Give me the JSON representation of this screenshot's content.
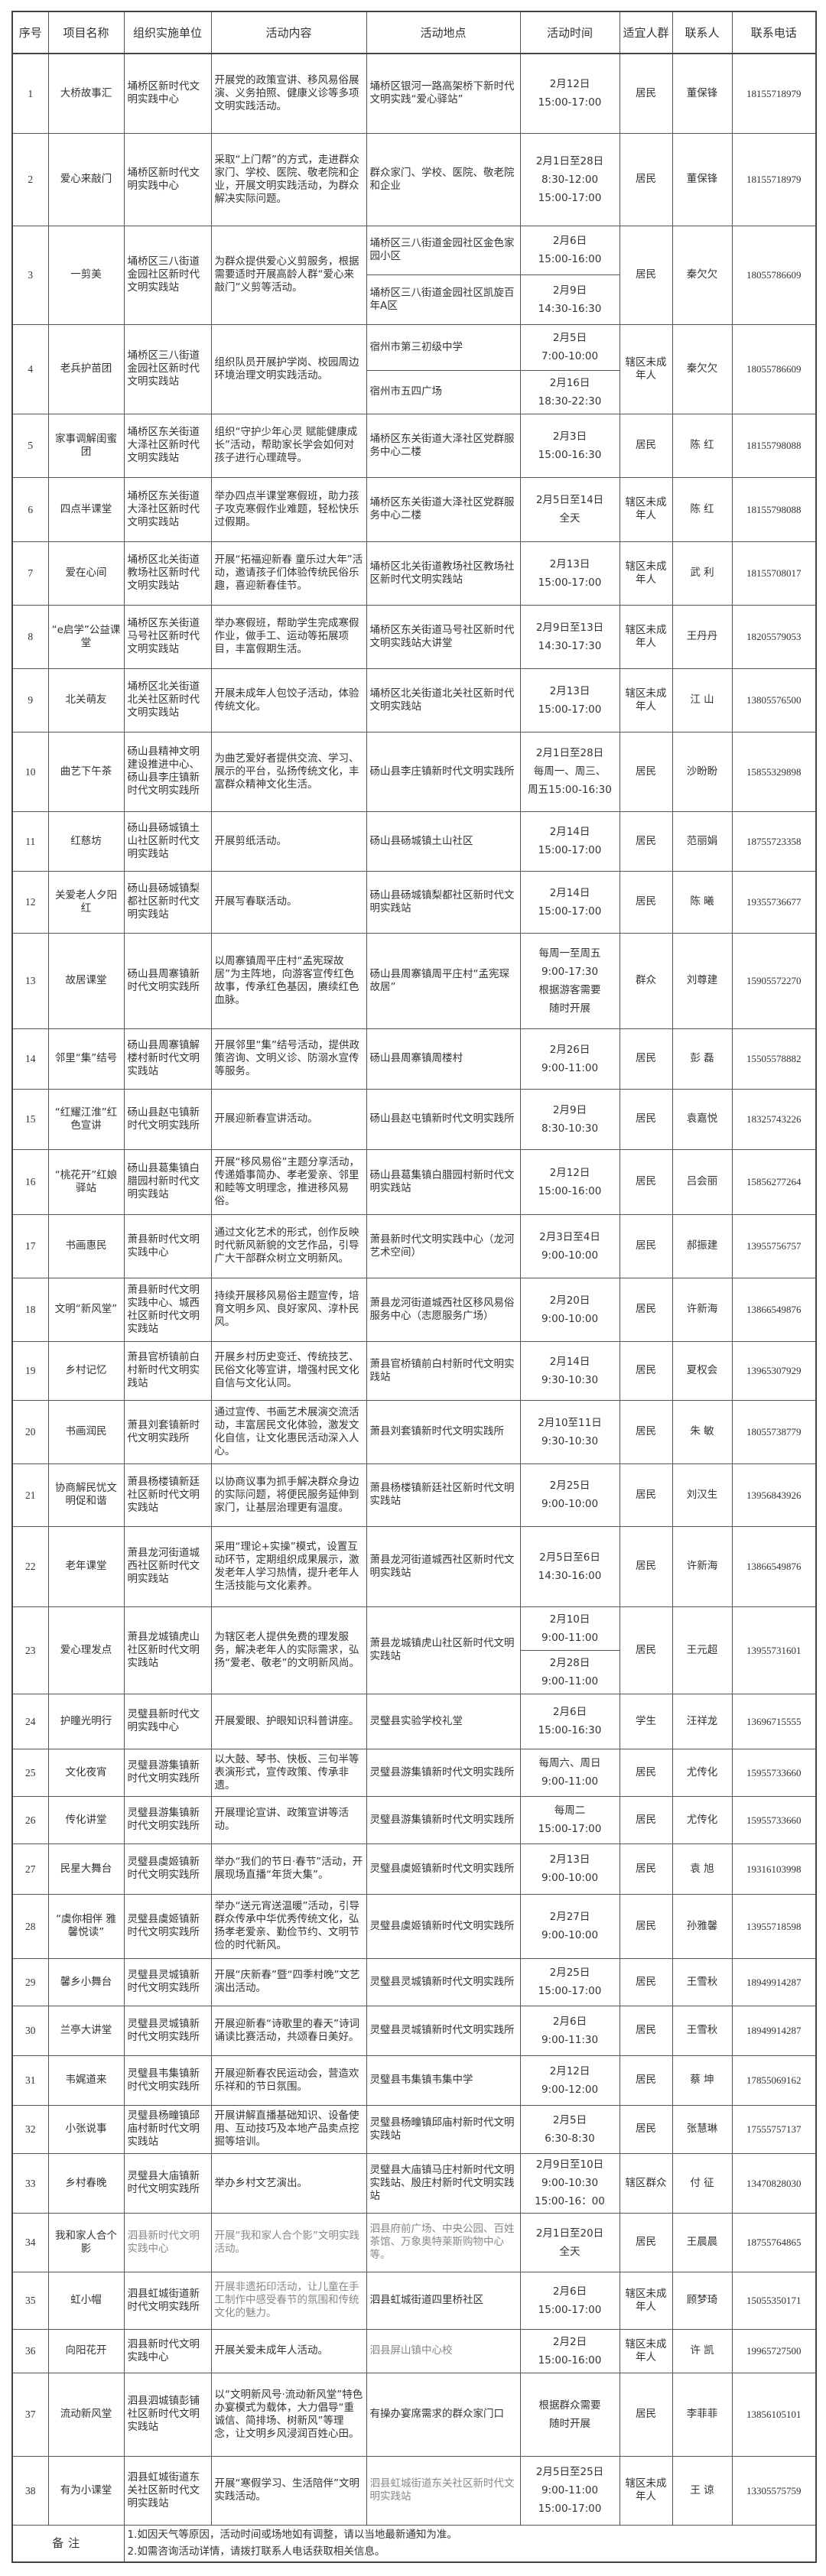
{
  "header": [
    "序号",
    "项目名称",
    "组织实施单位",
    "活动内容",
    "活动地点",
    "活动时间",
    "适宜人群",
    "联系人",
    "联系电话"
  ],
  "rows": [
    {
      "no": "1",
      "name": "大桥故事汇",
      "org": "埇桥区新时代文明实践中心",
      "content": "开展党的政策宣讲、移风易俗展演、义务拍照、健康义诊等多项文明实践活动。",
      "location": "埇桥区银河一路高架桥下新时代文明实践“爱心驿站”",
      "time": "2月12日\n15:00-17:00",
      "audience": "居民",
      "contact": "董保锋",
      "phone": "18155718979"
    },
    {
      "no": "2",
      "name": "爱心来敲门",
      "org": "埇桥区新时代文明实践中心",
      "content": "采取“上门帮”的方式，走进群众家门、学校、医院、敬老院和企业，开展文明实践活动，为群众解决实际问题。",
      "location": "群众家门、学校、医院、敬老院和企业",
      "time": "2月1日至28日\n8:30-12:00\n15:00-17:00",
      "audience": "居民",
      "contact": "董保锋",
      "phone": "18155718979"
    },
    {
      "no": "3",
      "name": "一剪美",
      "org": "埇桥区三八街道金园社区新时代文明实践站",
      "content": "为群众提供爱心义剪服务，根据需要适时开展高龄人群“爱心来敲门”义剪等活动。",
      "location": [
        "埇桥区三八街道金园社区金色家园小区",
        "埇桥区三八街道金园社区凯旋百年A区"
      ],
      "time": [
        "2月6日\n15:00-16:00",
        "2月9日\n14:30-16:30"
      ],
      "audience": "居民",
      "contact": "秦欠欠",
      "phone": "18055786609"
    },
    {
      "no": "4",
      "name": "老兵护苗团",
      "org": "埇桥区三八街道金园社区新时代文明实践站",
      "content": "组织队员开展护学岗、校园周边环境治理文明实践活动。",
      "location": [
        "宿州市第三初级中学",
        "宿州市五四广场"
      ],
      "time": [
        "2月5日\n7:00-10:00",
        "2月16日\n18:30-22:30"
      ],
      "audience": "辖区未成年人",
      "contact": "秦欠欠",
      "phone": "18055786609"
    },
    {
      "no": "5",
      "name": "家事调解闺蜜团",
      "org": "埇桥区东关街道大泽社区新时代文明实践站",
      "content": "组织“守护少年心灵 赋能健康成长”活动，帮助家长学会如何对孩子进行心理疏导。",
      "location": "埇桥区东关街道大泽社区党群服务中心二楼",
      "time": "2月3日\n15:00-16:30",
      "audience": "居民",
      "contact": "陈 红",
      "phone": "18155798088"
    },
    {
      "no": "6",
      "name": "四点半课堂",
      "org": "埇桥区东关街道大泽社区新时代文明实践站",
      "content": "举办四点半课堂寒假班，助力孩子攻克寒假作业难题，轻松快乐过假期。",
      "location": "埇桥区东关街道大泽社区党群服务中心二楼",
      "time": "2月5日至14日\n全天",
      "audience": "辖区未成年人",
      "contact": "陈 红",
      "phone": "18155798088"
    },
    {
      "no": "7",
      "name": "爱在心间",
      "org": "埇桥区北关街道教场社区新时代文明实践站",
      "content": "开展“拓福迎新春 童乐过大年”活动，邀请孩子们体验传统民俗乐趣，喜迎新春佳节。",
      "location": "埇桥区北关街道教场社区教场社区新时代文明实践站",
      "time": "2月13日\n15:00-17:00",
      "audience": "辖区未成年人",
      "contact": "武 利",
      "phone": "18155708017"
    },
    {
      "no": "8",
      "name": "“e启学”公益课堂",
      "org": "埇桥区东关街道马号社区新时代文明实践站",
      "content": "举办寒假班，帮助学生完成寒假作业，做手工、运动等拓展项目，丰富假期生活。",
      "location": "埇桥区东关街道马号社区新时代文明实践站大讲堂",
      "time": "2月9日至13日\n14:30-17:30",
      "audience": "辖区未成年人",
      "contact": "王丹丹",
      "phone": "18205579053"
    },
    {
      "no": "9",
      "name": "北关萌友",
      "org": "埇桥区北关街道北关社区新时代文明实践站",
      "content": "开展未成年人包饺子活动，体验传统文化。",
      "location": "埇桥区北关街道北关社区新时代文明实践站",
      "time": "2月13日\n15:00-17:00",
      "audience": "辖区未成年人",
      "contact": "江 山",
      "phone": "13805576500"
    },
    {
      "no": "10",
      "name": "曲艺下午茶",
      "org": "砀山县精神文明建设推进中心、砀山县李庄镇新时代文明实践所",
      "content": "为曲艺爱好者提供交流、学习、展示的平台，弘扬传统文化，丰富群众精神文化生活。",
      "location": "砀山县李庄镇新时代文明实践所",
      "time": "2月1日至28日\n每周一、周三、\n周五15:00-16:30",
      "audience": "居民",
      "contact": "沙盼盼",
      "phone": "15855329898"
    },
    {
      "no": "11",
      "name": "红慈坊",
      "org": "砀山县砀城镇土山社区新时代文明实践站",
      "content": "开展剪纸活动。",
      "location": "砀山县砀城镇土山社区",
      "time": "2月14日\n15:00-17:00",
      "audience": "居民",
      "contact": "范丽娟",
      "phone": "18755723358"
    },
    {
      "no": "12",
      "name": "关爱老人夕阳红",
      "org": "砀山县砀城镇梨都社区新时代文明实践站",
      "content": "开展写春联活动。",
      "location": "砀山县砀城镇梨都社区新时代文明实践站",
      "time": "2月14日\n15:00-17:00",
      "audience": "居民",
      "contact": "陈 曦",
      "phone": "19355736677"
    },
    {
      "no": "13",
      "name": "故居课堂",
      "org": "砀山县周寨镇新时代文明实践所",
      "content": "以周寨镇周平庄村“孟宪琛故居”为主阵地，向游客宣传红色故事，传承红色基因，赓续红色血脉。",
      "location": "砀山县周寨镇周平庄村“孟宪琛故居”",
      "time": "每周一至周五\n9:00-17:30\n根据游客需要\n随时开展",
      "audience": "群众",
      "contact": "刘尊建",
      "phone": "15905572270"
    },
    {
      "no": "14",
      "name": "邻里“集”结号",
      "org": "砀山县周寨镇解楼村新时代文明实践站",
      "content": "开展邻里“集”结号活动，提供政策咨询、文明义诊、防溺水宣传等服务。",
      "location": "砀山县周寨镇周楼村",
      "time": "2月26日\n9:00-11:00",
      "audience": "居民",
      "contact": "彭 磊",
      "phone": "15505578882"
    },
    {
      "no": "15",
      "name": "“红耀江淮”红色宣讲",
      "org": "砀山县赵屯镇新时代文明实践所",
      "content": "开展迎新春宣讲活动。",
      "location": "砀山县赵屯镇新时代文明实践所",
      "time": "2月9日\n8:30-10:30",
      "audience": "居民",
      "contact": "袁嘉悦",
      "phone": "18325743226"
    },
    {
      "no": "16",
      "name": "“桃花开”红娘驿站",
      "org": "砀山县葛集镇白腊园村新时代文明实践站",
      "content": "开展“移风易俗”主题分享活动，传递婚事简办、孝老爱亲、邻里和睦等文明理念，推进移风易俗。",
      "location": "砀山县葛集镇白腊园村新时代文明实践站",
      "time": "2月12日\n15:00-16:00",
      "audience": "居民",
      "contact": "吕会丽",
      "phone": "15856277264"
    },
    {
      "no": "17",
      "name": "书画惠民",
      "org": "萧县新时代文明实践中心",
      "content": "通过文化艺术的形式，创作反映时代新风新貌的文艺作品，引导广大干部群众树立文明新风。",
      "location": "萧县新时代文明实践中心（龙河艺术空间）",
      "time": "2月3日至4日\n9:00-10:00",
      "audience": "居民",
      "contact": "郝振建",
      "phone": "13955756757"
    },
    {
      "no": "18",
      "name": "文明“新风堂”",
      "org": "萧县新时代文明实践中心、城西社区新时代文明实践站",
      "content": "持续开展移风易俗主题宣传，培育文明乡风、良好家风、淳朴民风。",
      "location": "萧县龙河街道城西社区移风易俗服务中心（志愿服务广场）",
      "time": "2月20日\n9:00-10:00",
      "audience": "居民",
      "contact": "许新海",
      "phone": "13866549876"
    },
    {
      "no": "19",
      "name": "乡村记忆",
      "org": "萧县官桥镇前白村新时代文明实践站",
      "content": "开展乡村历史变迁、传统技艺、民俗文化等宣讲，增强村民文化自信与文化认同。",
      "location": "萧县官桥镇前白村新时代文明实践站",
      "time": "2月14日\n9:30-10:30",
      "audience": "居民",
      "contact": "夏权会",
      "phone": "13965307929"
    },
    {
      "no": "20",
      "name": "书画润民",
      "org": "萧县刘套镇新时代文明实践所",
      "content": "通过宣传、书画艺术展演交流活动，丰富居民文化体验，激发文化自信，让文化惠民活动深入人心。",
      "location": "萧县刘套镇新时代文明实践所",
      "time": "2月10至11日\n9:30-10:30",
      "audience": "居民",
      "contact": "朱 敏",
      "phone": "18055738779"
    },
    {
      "no": "21",
      "name": "协商解民忧文明促和谐",
      "org": "萧县杨楼镇新廷社区新时代文明实践站",
      "content": "以协商议事为抓手解决群众身边的实际问题，将便民服务延伸到家门，让基层治理更有温度。",
      "location": "萧县杨楼镇新廷社区新时代文明实践站",
      "time": "2月25日\n9:00-10:00",
      "audience": "居民",
      "contact": "刘汉生",
      "phone": "13956843926"
    },
    {
      "no": "22",
      "name": "老年课堂",
      "org": "萧县龙河街道城西社区新时代文明实践站",
      "content": "采用“理论+实操”模式，设置互动环节，定期组织成果展示，激发老年人学习热情，提升老年人生活技能与文化素养。",
      "location": "萧县龙河街道城西社区新时代文明实践站",
      "time": "2月5日至6日\n14:30-16:00",
      "audience": "居民",
      "contact": "许新海",
      "phone": "13866549876"
    },
    {
      "no": "23",
      "name": "爱心理发点",
      "org": "萧县龙城镇虎山社区新时代文明实践站",
      "content": "为辖区老人提供免费的理发服务，解决老年人的实际需求，弘扬“爱老、敬老”的文明新风尚。",
      "location": "萧县龙城镇虎山社区新时代文明实践站",
      "time": [
        "2月10日\n9:00-11:00",
        "2月28日\n9:00-11:00"
      ],
      "audience": "居民",
      "contact": "王元超",
      "phone": "13955731601"
    },
    {
      "no": "24",
      "name": "护瞳光明行",
      "org": "灵璧县新时代文明实践中心",
      "content": "开展爱眼、护眼知识科普讲座。",
      "location": "灵璧县实验学校礼堂",
      "time": "2月6日\n15:00-16:30",
      "audience": "学生",
      "contact": "汪祥龙",
      "phone": "13696715555"
    },
    {
      "no": "25",
      "name": "文化夜宵",
      "org": "灵璧县游集镇新时代文明实践所",
      "content": "以大鼓、琴书、快板、三句半等表演形式，宣传政策、传承非遗。",
      "location": "灵璧县游集镇新时代文明实践所",
      "time": "每周六、周日\n9:00-11:00",
      "audience": "居民",
      "contact": "尤传化",
      "phone": "15955733660"
    },
    {
      "no": "26",
      "name": "传化讲堂",
      "org": "灵璧县游集镇新时代文明实践所",
      "content": "开展理论宣讲、政策宣讲等活动。",
      "location": "灵璧县游集镇新时代文明实践所",
      "time": "每周二\n15:00-17:00",
      "audience": "居民",
      "contact": "尤传化",
      "phone": "15955733660"
    },
    {
      "no": "27",
      "name": "民星大舞台",
      "org": "灵璧县虞姬镇新时代文明实践所",
      "content": "举办“我们的节日·春节”活动，开展现场直播“年货大集”。",
      "location": "灵璧县虞姬镇新时代文明实践所",
      "time": "2月13日\n9:00-10:00",
      "audience": "居民",
      "contact": "袁 旭",
      "phone": "19316103998"
    },
    {
      "no": "28",
      "name": "“虞你相伴 雅馨悦读”",
      "org": "灵璧县虞姬镇新时代文明实践所",
      "content": "举办“送元宵送温暖”活动，引导群众传承中华优秀传统文化，弘扬孝老爱亲、勤俭节约、文明节俭的时代新风。",
      "location": "灵璧县虞姬镇新时代文明实践所",
      "time": "2月27日\n9:00-10:00",
      "audience": "居民",
      "contact": "孙雅馨",
      "phone": "13955718598"
    },
    {
      "no": "29",
      "name": "馨乡小舞台",
      "org": "灵璧县灵城镇新时代文明实践所",
      "content": "开展“庆新春”暨“四季村晚”文艺演出活动。",
      "location": "灵璧县灵城镇新时代文明实践所",
      "time": "2月25日\n15:00-17:00",
      "audience": "居民",
      "contact": "王雪秋",
      "phone": "18949914287"
    },
    {
      "no": "30",
      "name": "兰亭大讲堂",
      "org": "灵璧县灵城镇新时代文明实践所",
      "content": "开展迎新春“诗歌里的春天”诗词诵读比赛活动，共颂春日美好。",
      "location": "灵璧县灵城镇新时代文明实践所",
      "time": "2月6日\n9:00-11:30",
      "audience": "居民",
      "contact": "王雪秋",
      "phone": "18949914287"
    },
    {
      "no": "31",
      "name": "韦娓道来",
      "org": "灵璧县韦集镇新时代文明实践所",
      "content": "开展迎新春农民运动会，营造欢乐祥和的节日氛围。",
      "location": "灵璧县韦集镇韦集中学",
      "time": "2月12日\n9:00-12:00",
      "audience": "居民",
      "contact": "蔡 坤",
      "phone": "17855069162"
    },
    {
      "no": "32",
      "name": "小张说事",
      "org": "灵璧县杨疃镇邱庙村新时代文明实践站",
      "content": "开展讲解直播基础知识、设备使用、互动技巧及本地产品卖点挖掘等培训。",
      "location": "灵璧县杨疃镇邱庙村新时代文明实践站",
      "time": "2月5日\n6:30-8:30",
      "audience": "居民",
      "contact": "张慧琳",
      "phone": "17555757137"
    },
    {
      "no": "33",
      "name": "乡村春晚",
      "org": "灵璧县大庙镇新时代文明实践所",
      "content": "举办乡村文艺演出。",
      "location": "灵璧县大庙镇马庄村新时代文明实践站、殷庄村新时代文明实践站",
      "time": "2月9日至10日\n9:00-10:30\n15:00-16：00",
      "audience": "辖区群众",
      "contact": "付 征",
      "phone": "13470828030"
    },
    {
      "no": "34",
      "name": "我和家人合个影",
      "org": "泗县新时代文明实践中心",
      "content": "开展“我和家人合个影”文明实践活动。",
      "location": "泗县府前广场、中央公园、百姓茶馆、万象奥特莱斯购物中心等。",
      "time": "2月1日至20日\n全天",
      "audience": "居民",
      "contact": "王晨晨",
      "phone": "18755764865"
    },
    {
      "no": "35",
      "name": "虹小帽",
      "org": "泗县虹城街道新时代文明实践所",
      "content": "开展非遗拓印活动，让儿童在手工制作中感受春节的氛围和传统文化的魅力。",
      "location": "泗县虹城街道四里桥社区",
      "time": "2月6日\n15:00-17:00",
      "audience": "辖区未成年人",
      "contact": "顾梦琦",
      "phone": "15055350171"
    },
    {
      "no": "36",
      "name": "向阳花开",
      "org": "泗县新时代文明实践中心",
      "content": "开展关爱未成年人活动。",
      "location": "泗县屏山镇中心校",
      "time": "2月2日\n15:00-16:00",
      "audience": "辖区未成年人",
      "contact": "许 凯",
      "phone": "19965727500"
    },
    {
      "no": "37",
      "name": "流动新风堂",
      "org": "泗县泗城镇彭铺社区新时代文明实践站",
      "content": "以“文明新风号·流动新风堂”特色办宴模式为载体，大力倡导“重诚信、简排场、树新风”等理念，让文明乡风浸润百姓心田。",
      "location": "有操办宴席需求的群众家门口",
      "time": "根据群众需要\n随时开展",
      "audience": "居民",
      "contact": "李菲菲",
      "phone": "13856105101"
    },
    {
      "no": "38",
      "name": "有为小课堂",
      "org": "泗县虹城街道东关社区新时代文明实践站",
      "content": "开展“寒假学习、生活陪伴”文明实践活动。",
      "location": "泗县虹城街道东关社区新时代文明实践站",
      "time": "2月5日至25日\n9:00-11:00\n15:00-17:00",
      "audience": "辖区未成年人",
      "contact": "王 谅",
      "phone": "13305575759"
    }
  ],
  "notes": {
    "label": "备注",
    "lines": [
      "1.如因天气等原因，活动时间或场地如有调整，请以当地最新通知为准。",
      "2.如需咨询活动详情，请拨打联系人电话获取相关信息。"
    ]
  },
  "colors": {
    "border": "#444444",
    "text": "#333333",
    "muted_text": "#888888"
  }
}
